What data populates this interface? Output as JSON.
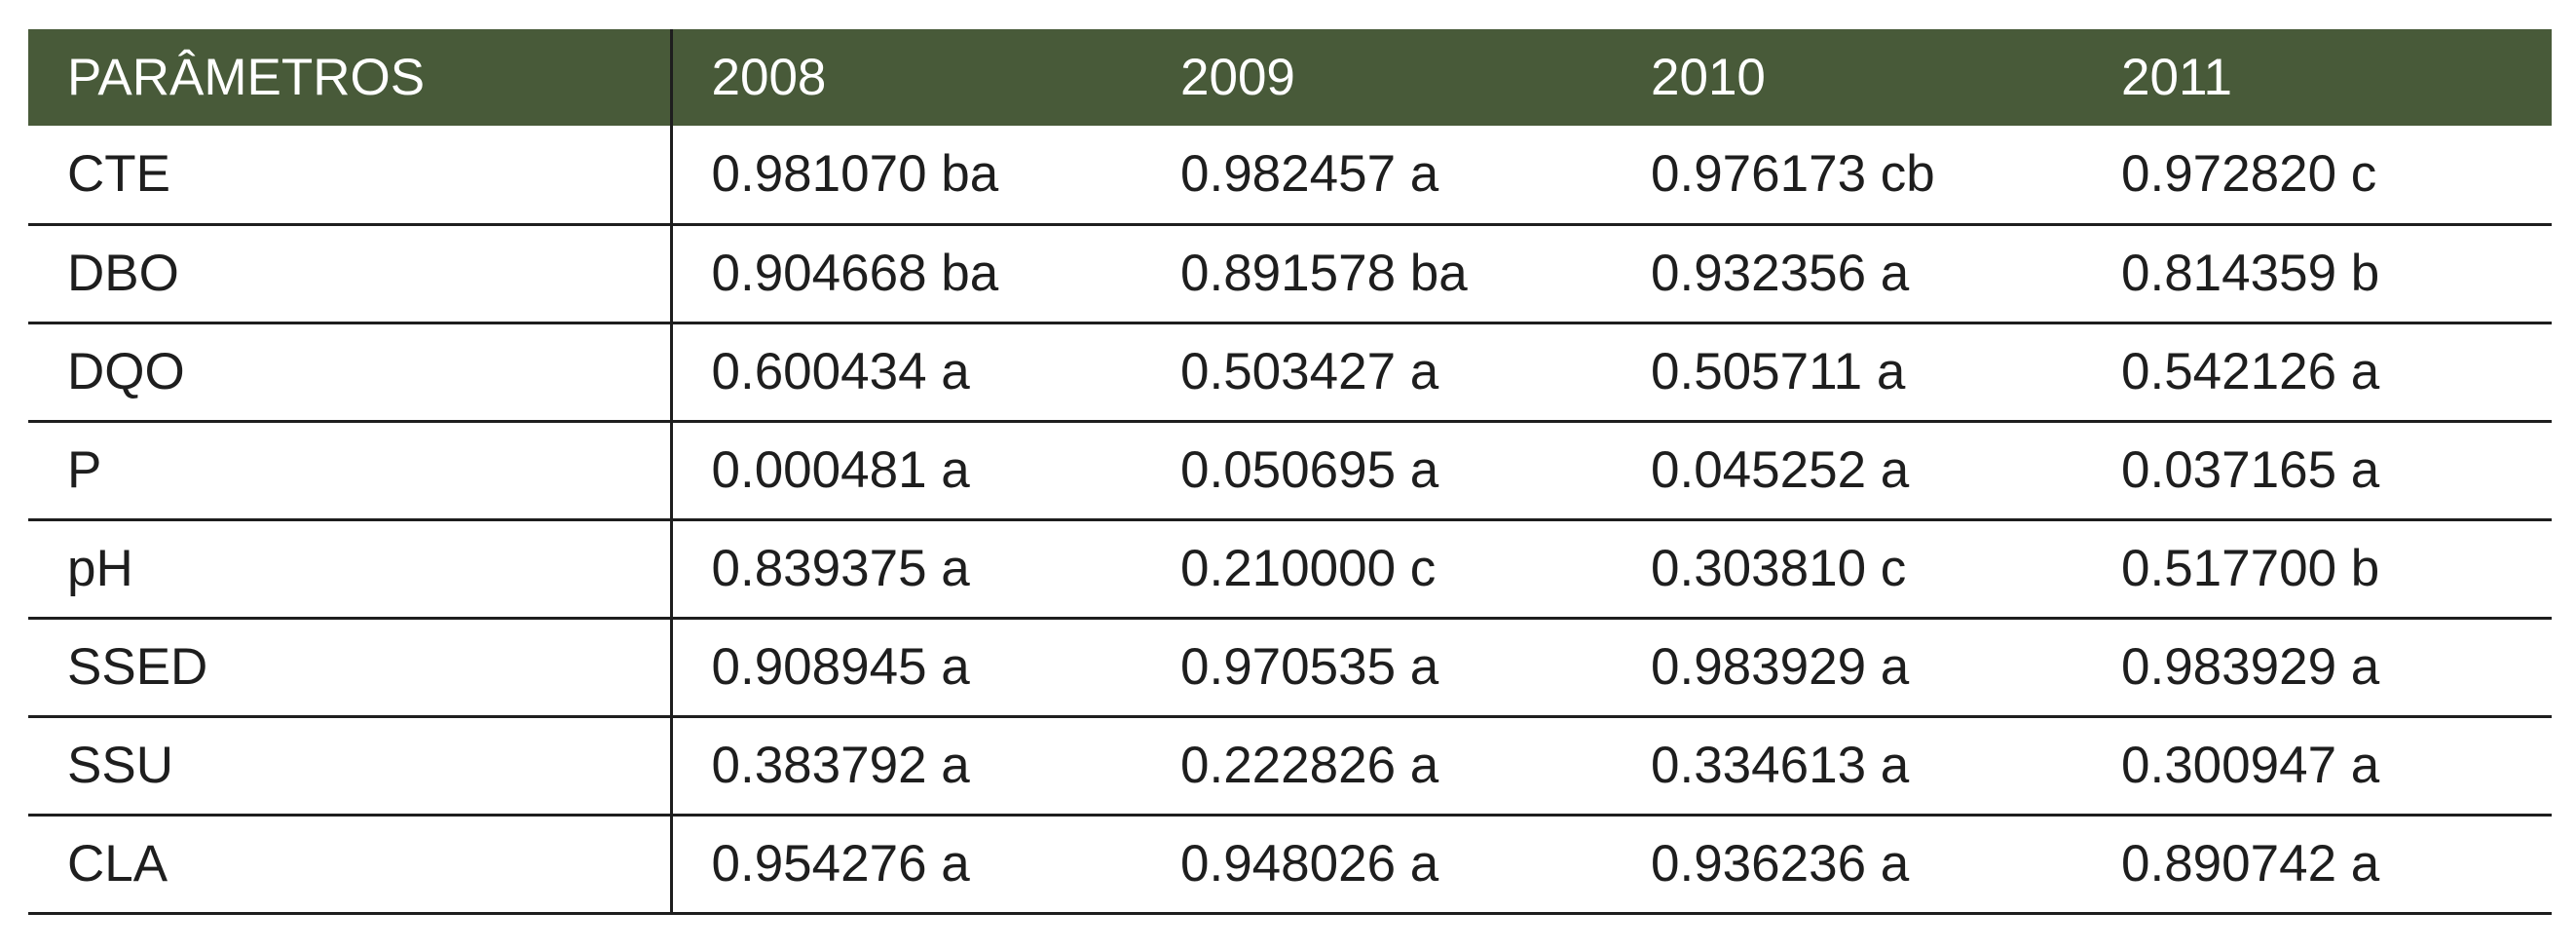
{
  "table": {
    "headers": [
      "PARÂMETROS",
      "2008",
      "2009",
      "2010",
      "2011"
    ],
    "rows": [
      [
        "CTE",
        "0.981070 ba",
        "0.982457 a",
        "0.976173 cb",
        "0.972820 c"
      ],
      [
        "DBO",
        "0.904668 ba",
        "0.891578 ba",
        "0.932356 a",
        "0.814359 b"
      ],
      [
        "DQO",
        "0.600434 a",
        "0.503427 a",
        "0.505711 a",
        "0.542126 a"
      ],
      [
        "P",
        "0.000481 a",
        "0.050695 a",
        "0.045252 a",
        "0.037165 a"
      ],
      [
        "pH",
        "0.839375 a",
        "0.210000 c",
        "0.303810 c",
        "0.517700 b"
      ],
      [
        "SSED",
        "0.908945 a",
        "0.970535 a",
        "0.983929 a",
        "0.983929 a"
      ],
      [
        "SSU",
        "0.383792 a",
        "0.222826 a",
        "0.334613 a",
        "0.300947 a"
      ],
      [
        "CLA",
        "0.954276 a",
        "0.948026 a",
        "0.936236 a",
        "0.890742 a"
      ]
    ]
  },
  "colors": {
    "header_background": "#485a39",
    "header_text": "#ffffff",
    "body_text": "#1e1e1e",
    "rule_lines": "#1e1e1e"
  }
}
